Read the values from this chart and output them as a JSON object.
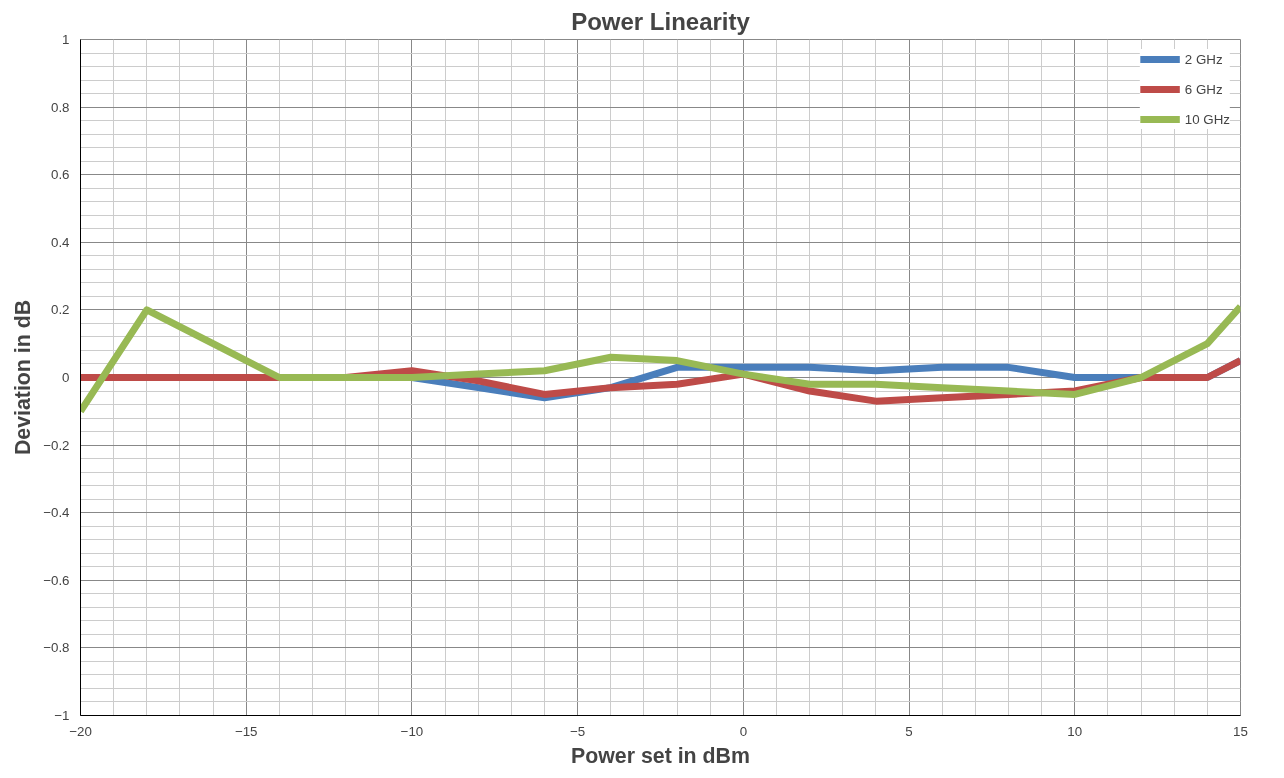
{
  "chart_data": {
    "type": "line",
    "title": "Power Linearity",
    "xlabel": "Power set in dBm",
    "ylabel": "Deviation in dB",
    "x": [
      -20,
      -18,
      -16,
      -14,
      -12,
      -10,
      -8,
      -6,
      -4,
      -2,
      0,
      2,
      4,
      6,
      8,
      10,
      12,
      14,
      15
    ],
    "series": [
      {
        "name": "2 GHz",
        "color": "#4a7ebb",
        "values": [
          null,
          null,
          null,
          null,
          null,
          0,
          -0.03,
          -0.06,
          -0.03,
          0.03,
          0.03,
          0.03,
          0.02,
          0.03,
          0.03,
          0,
          0,
          0,
          0.05
        ]
      },
      {
        "name": "6 GHz",
        "color": "#be4b48",
        "values": [
          0,
          0,
          0,
          0,
          0,
          0.02,
          -0.01,
          -0.05,
          -0.03,
          -0.02,
          0.01,
          -0.04,
          -0.07,
          -0.06,
          -0.05,
          -0.04,
          0,
          0,
          0.05
        ]
      },
      {
        "name": "10 GHz",
        "color": "#98b954",
        "values": [
          -0.1,
          0.2,
          0.1,
          0,
          0,
          0,
          0.01,
          0.02,
          0.06,
          0.05,
          0.01,
          -0.02,
          -0.02,
          -0.03,
          -0.04,
          -0.05,
          0,
          0.1,
          0.21
        ]
      }
    ],
    "xlim": [
      -20,
      15
    ],
    "ylim": [
      -1,
      1
    ],
    "xticks": [
      -20,
      -15,
      -10,
      -5,
      0,
      5,
      10,
      15
    ],
    "yticks": [
      -1,
      -0.8,
      -0.6,
      -0.4,
      -0.2,
      0,
      0.2,
      0.4,
      0.6,
      0.8,
      1
    ],
    "grid": true,
    "legend": "top right",
    "marker": "none",
    "line_style": "solid"
  }
}
